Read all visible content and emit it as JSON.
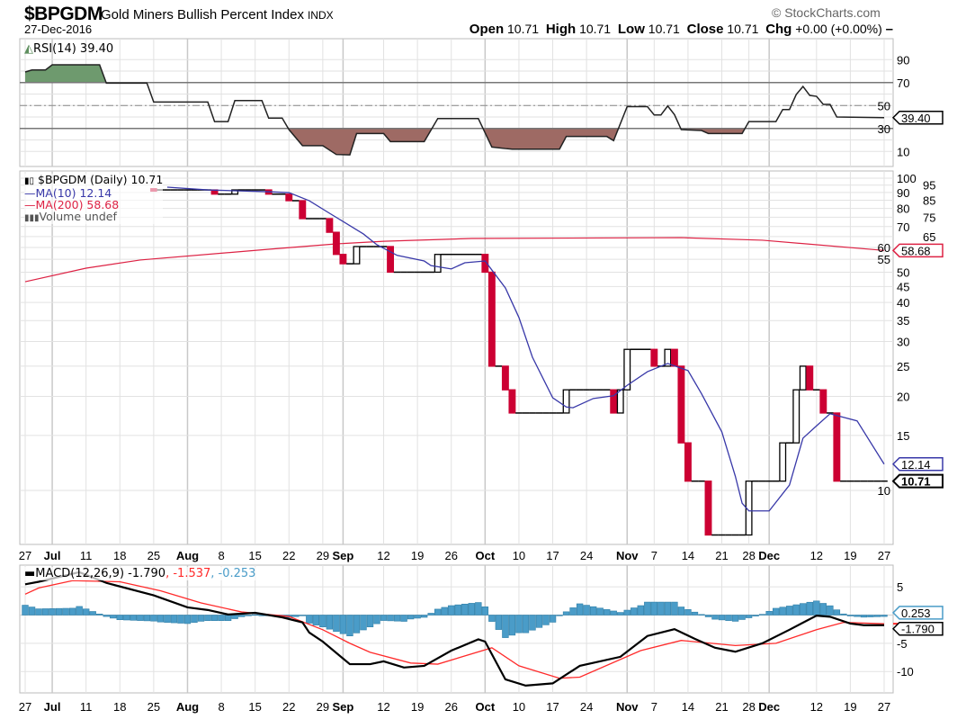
{
  "header": {
    "symbol": "$BPGDM",
    "name": "Gold Miners Bullish Percent Index",
    "exchange": "INDX",
    "date": "27-Dec-2016",
    "copyright": "© StockCharts.com",
    "open_label": "Open",
    "open": "10.71",
    "high_label": "High",
    "high": "10.71",
    "low_label": "Low",
    "low": "10.71",
    "close_label": "Close",
    "close": "10.71",
    "chg_label": "Chg",
    "chg": "+0.00 (+0.00%)",
    "chg_marker": "–"
  },
  "colors": {
    "up": "#000000",
    "down": "#cc0033",
    "ma10": "#3838a8",
    "ma200": "#dd2244",
    "rsi_line": "#222222",
    "rsi_overbought_fill": "#6e9a6e",
    "rsi_oversold_fill": "#9e6a64",
    "macd": "#000000",
    "signal": "#ff2a2a",
    "histogram": "#4a9cc8",
    "grid": "#e2e2e2"
  },
  "x_axis": {
    "ticks": [
      {
        "date": "2016-06-27",
        "label": "27"
      },
      {
        "date": "2016-07-01",
        "label": "Jul",
        "month": true
      },
      {
        "date": "2016-07-11",
        "label": "11"
      },
      {
        "date": "2016-07-18",
        "label": "18"
      },
      {
        "date": "2016-07-25",
        "label": "25"
      },
      {
        "date": "2016-08-01",
        "label": "Aug",
        "month": true
      },
      {
        "date": "2016-08-08",
        "label": "8"
      },
      {
        "date": "2016-08-15",
        "label": "15"
      },
      {
        "date": "2016-08-22",
        "label": "22"
      },
      {
        "date": "2016-08-29",
        "label": "29"
      },
      {
        "date": "2016-09-01",
        "label": "Sep",
        "month": true
      },
      {
        "date": "2016-09-12",
        "label": "12"
      },
      {
        "date": "2016-09-19",
        "label": "19"
      },
      {
        "date": "2016-09-26",
        "label": "26"
      },
      {
        "date": "2016-10-03",
        "label": "Oct",
        "month": true
      },
      {
        "date": "2016-10-10",
        "label": "10"
      },
      {
        "date": "2016-10-17",
        "label": "17"
      },
      {
        "date": "2016-10-24",
        "label": "24"
      },
      {
        "date": "2016-11-01",
        "label": "Nov",
        "month": true
      },
      {
        "date": "2016-11-07",
        "label": "7"
      },
      {
        "date": "2016-11-14",
        "label": "14"
      },
      {
        "date": "2016-11-21",
        "label": "21"
      },
      {
        "date": "2016-11-28",
        "label": "28"
      },
      {
        "date": "2016-12-01",
        "label": "Dec",
        "month": true
      },
      {
        "date": "2016-12-12",
        "label": "12"
      },
      {
        "date": "2016-12-19",
        "label": "19"
      },
      {
        "date": "2016-12-27",
        "label": "27"
      }
    ],
    "range": [
      "2016-06-27",
      "2016-12-27"
    ]
  },
  "chart_data": [
    {
      "type": "line",
      "panel": "rsi",
      "legend": "RSI(14) 39.40",
      "ylim": [
        0,
        100
      ],
      "yticks": [
        90,
        70,
        50,
        30,
        10
      ],
      "levels": {
        "overbought": 70,
        "mid": 50,
        "oversold": 30
      },
      "value_tag": "39.40",
      "points": [
        [
          "2016-06-27",
          79.2
        ],
        [
          "2016-06-28",
          81
        ],
        [
          "2016-06-30",
          81
        ],
        [
          "2016-07-01",
          85.5
        ],
        [
          "2016-07-13",
          85.5
        ],
        [
          "2016-07-14",
          69.5
        ],
        [
          "2016-07-22",
          69.5
        ],
        [
          "2016-07-25",
          53
        ],
        [
          "2016-08-04",
          53
        ],
        [
          "2016-08-05",
          36
        ],
        [
          "2016-08-09",
          36
        ],
        [
          "2016-08-10",
          54.3
        ],
        [
          "2016-08-16",
          54.3
        ],
        [
          "2016-08-17",
          39
        ],
        [
          "2016-08-19",
          39
        ],
        [
          "2016-08-22",
          29
        ],
        [
          "2016-08-24",
          15
        ],
        [
          "2016-08-29",
          15
        ],
        [
          "2016-08-31",
          7.3
        ],
        [
          "2016-09-02",
          7
        ],
        [
          "2016-09-06",
          25.6
        ],
        [
          "2016-09-12",
          25.6
        ],
        [
          "2016-09-13",
          18.5
        ],
        [
          "2016-09-20",
          18.5
        ],
        [
          "2016-09-22",
          38.6
        ],
        [
          "2016-09-30",
          38.6
        ],
        [
          "2016-10-04",
          13.8
        ],
        [
          "2016-10-06",
          12.5
        ],
        [
          "2016-10-07",
          12
        ],
        [
          "2016-10-18",
          12
        ],
        [
          "2016-10-19",
          23
        ],
        [
          "2016-10-27",
          23
        ],
        [
          "2016-10-28",
          19.4
        ],
        [
          "2016-11-01",
          49
        ],
        [
          "2016-11-04",
          49
        ],
        [
          "2016-11-07",
          41.8
        ],
        [
          "2016-11-08",
          41.8
        ],
        [
          "2016-11-09",
          49.6
        ],
        [
          "2016-11-10",
          42
        ],
        [
          "2016-11-11",
          29
        ],
        [
          "2016-11-16",
          28.2
        ],
        [
          "2016-11-17",
          25.6
        ],
        [
          "2016-11-25",
          25.6
        ],
        [
          "2016-11-28",
          36
        ],
        [
          "2016-12-02",
          36
        ],
        [
          "2016-12-05",
          46.5
        ],
        [
          "2016-12-06",
          46.5
        ],
        [
          "2016-12-07",
          59.6
        ],
        [
          "2016-12-08",
          66.6
        ],
        [
          "2016-12-09",
          58.8
        ],
        [
          "2016-12-12",
          58
        ],
        [
          "2016-12-13",
          51
        ],
        [
          "2016-12-14",
          51
        ],
        [
          "2016-12-15",
          40
        ],
        [
          "2016-12-27",
          39.4
        ]
      ]
    },
    {
      "type": "line",
      "panel": "price",
      "scale": "log",
      "legend": {
        "price": "$BPGDM (Daily) 10.71",
        "ma10": "MA(10) 12.14",
        "ma200": "MA(200) 58.68",
        "volume": "Volume undef"
      },
      "yticks": [
        100,
        95,
        90,
        85,
        80,
        75,
        70,
        65,
        60,
        55,
        50,
        45,
        40,
        35,
        30,
        25,
        20,
        15,
        10
      ],
      "tags": {
        "ma200": "58.68",
        "ma10": "12.14",
        "close": "10.71"
      },
      "close_changes": [
        [
          "2016-07-25",
          91.7
        ],
        [
          "2016-08-05",
          88.9
        ],
        [
          "2016-08-10",
          91.7
        ],
        [
          "2016-08-17",
          88.9
        ],
        [
          "2016-08-22",
          84.7
        ],
        [
          "2016-08-24",
          74.2
        ],
        [
          "2016-08-30",
          67.1
        ],
        [
          "2016-08-31",
          57
        ],
        [
          "2016-09-01",
          53.2
        ],
        [
          "2016-09-06",
          60.4
        ],
        [
          "2016-09-13",
          50
        ],
        [
          "2016-09-22",
          57
        ],
        [
          "2016-10-03",
          50
        ],
        [
          "2016-10-04",
          25
        ],
        [
          "2016-10-06",
          21
        ],
        [
          "2016-10-07",
          17.7
        ],
        [
          "2016-10-19",
          21
        ],
        [
          "2016-10-28",
          17.7
        ],
        [
          "2016-10-31",
          21
        ],
        [
          "2016-11-01",
          28.3
        ],
        [
          "2016-11-07",
          25
        ],
        [
          "2016-11-09",
          28.3
        ],
        [
          "2016-11-10",
          25
        ],
        [
          "2016-11-11",
          14.2
        ],
        [
          "2016-11-14",
          10.71
        ],
        [
          "2016-11-17",
          7.2
        ],
        [
          "2016-11-28",
          10.71
        ],
        [
          "2016-12-05",
          14.2
        ],
        [
          "2016-12-07",
          21
        ],
        [
          "2016-12-08",
          25
        ],
        [
          "2016-12-09",
          21
        ],
        [
          "2016-12-13",
          17.7
        ],
        [
          "2016-12-15",
          10.71
        ],
        [
          "2016-12-27",
          10.71
        ]
      ],
      "ma10": [
        [
          "2016-07-27",
          93.6
        ],
        [
          "2016-08-04",
          91.7
        ],
        [
          "2016-08-17",
          90.5
        ],
        [
          "2016-08-22",
          89.9
        ],
        [
          "2016-08-25",
          84.7
        ],
        [
          "2016-08-30",
          77.2
        ],
        [
          "2016-09-07",
          66.3
        ],
        [
          "2016-09-09",
          61.2
        ],
        [
          "2016-09-14",
          56.6
        ],
        [
          "2016-09-20",
          54.3
        ],
        [
          "2016-09-21",
          52.5
        ],
        [
          "2016-09-26",
          51.2
        ],
        [
          "2016-09-28",
          53.6
        ],
        [
          "2016-10-03",
          54.3
        ],
        [
          "2016-10-04",
          50.8
        ],
        [
          "2016-10-06",
          44.5
        ],
        [
          "2016-10-10",
          35.8
        ],
        [
          "2016-10-12",
          26.7
        ],
        [
          "2016-10-17",
          19.8
        ],
        [
          "2016-10-19",
          18.5
        ],
        [
          "2016-10-20",
          18.4
        ],
        [
          "2016-10-25",
          19.7
        ],
        [
          "2016-10-28",
          20.1
        ],
        [
          "2016-11-01",
          21.7
        ],
        [
          "2016-11-04",
          24
        ],
        [
          "2016-11-09",
          25.5
        ],
        [
          "2016-11-14",
          24.2
        ],
        [
          "2016-11-16",
          20.4
        ],
        [
          "2016-11-21",
          15.4
        ],
        [
          "2016-11-23",
          11.1
        ],
        [
          "2016-11-25",
          9.1
        ],
        [
          "2016-11-28",
          8.6
        ],
        [
          "2016-12-01",
          8.6
        ],
        [
          "2016-12-06",
          10.4
        ],
        [
          "2016-12-08",
          14.7
        ],
        [
          "2016-12-12",
          16.1
        ],
        [
          "2016-12-14",
          17.6
        ],
        [
          "2016-12-20",
          16.7
        ],
        [
          "2016-12-27",
          12.14
        ]
      ],
      "ma200": [
        [
          "2016-06-27",
          46.6
        ],
        [
          "2016-07-11",
          51.5
        ],
        [
          "2016-07-21",
          54.7
        ],
        [
          "2016-08-17",
          59.2
        ],
        [
          "2016-08-31",
          61.6
        ],
        [
          "2016-09-12",
          62.8
        ],
        [
          "2016-09-29",
          64.1
        ],
        [
          "2016-11-11",
          64.5
        ],
        [
          "2016-11-30",
          63.3
        ],
        [
          "2016-12-27",
          58.68
        ]
      ]
    },
    {
      "type": "line",
      "panel": "macd",
      "legend": {
        "label": "MACD(12,26,9)",
        "macd": "-1.790",
        "signal": ", -1.537",
        "histogram": ", -0.253"
      },
      "ylim": [
        -13.9,
        8.8
      ],
      "yticks": [
        5,
        -5,
        -10
      ],
      "tags": {
        "histogram": "0.253",
        "macd": "-1.790"
      },
      "macd": [
        [
          "2016-06-27",
          5.45
        ],
        [
          "2016-06-29",
          5.9
        ],
        [
          "2016-07-08",
          7.6
        ],
        [
          "2016-07-14",
          5.7
        ],
        [
          "2016-07-25",
          3.5
        ],
        [
          "2016-08-01",
          1.36
        ],
        [
          "2016-08-04",
          0.9
        ],
        [
          "2016-08-09",
          0.1
        ],
        [
          "2016-08-15",
          0.4
        ],
        [
          "2016-08-19",
          -0.4
        ],
        [
          "2016-08-24",
          -1.3
        ],
        [
          "2016-08-25",
          -3.1
        ],
        [
          "2016-08-29",
          -4.7
        ],
        [
          "2016-09-02",
          -8.7
        ],
        [
          "2016-09-08",
          -8.7
        ],
        [
          "2016-09-12",
          -8.2
        ],
        [
          "2016-09-15",
          -9.3
        ],
        [
          "2016-09-20",
          -9.0
        ],
        [
          "2016-09-26",
          -6.3
        ],
        [
          "2016-09-30",
          -4.3
        ],
        [
          "2016-10-03",
          -4.7
        ],
        [
          "2016-10-06",
          -11.4
        ],
        [
          "2016-10-11",
          -12.5
        ],
        [
          "2016-10-17",
          -12.1
        ],
        [
          "2016-10-21",
          -9.0
        ],
        [
          "2016-10-31",
          -7.4
        ],
        [
          "2016-11-04",
          -3.7
        ],
        [
          "2016-11-10",
          -2.5
        ],
        [
          "2016-11-15",
          -4.2
        ],
        [
          "2016-11-18",
          -5.8
        ],
        [
          "2016-11-23",
          -6.5
        ],
        [
          "2016-11-30",
          -5.0
        ],
        [
          "2016-12-06",
          -2.6
        ],
        [
          "2016-12-12",
          -0.1
        ],
        [
          "2016-12-14",
          -0.3
        ],
        [
          "2016-12-19",
          -1.5
        ],
        [
          "2016-12-21",
          -1.79
        ],
        [
          "2016-12-27",
          -1.79
        ]
      ],
      "signal": [
        [
          "2016-06-27",
          3.7
        ],
        [
          "2016-06-29",
          4.8
        ],
        [
          "2016-07-07",
          6.1
        ],
        [
          "2016-07-18",
          5.9
        ],
        [
          "2016-07-26",
          4.3
        ],
        [
          "2016-08-03",
          2.15
        ],
        [
          "2016-08-11",
          0.55
        ],
        [
          "2016-08-22",
          -0.25
        ],
        [
          "2016-08-29",
          -2.6
        ],
        [
          "2016-09-02",
          -5.0
        ],
        [
          "2016-09-08",
          -6.6
        ],
        [
          "2016-09-16",
          -8.5
        ],
        [
          "2016-09-22",
          -8.7
        ],
        [
          "2016-10-04",
          -5.8
        ],
        [
          "2016-10-10",
          -9.0
        ],
        [
          "2016-10-18",
          -11.2
        ],
        [
          "2016-10-21",
          -11.0
        ],
        [
          "2016-11-03",
          -6.3
        ],
        [
          "2016-11-11",
          -4.5
        ],
        [
          "2016-11-23",
          -5.4
        ],
        [
          "2016-12-02",
          -5.0
        ],
        [
          "2016-12-12",
          -2.6
        ],
        [
          "2016-12-16",
          -1.3
        ],
        [
          "2016-12-27",
          -1.537
        ]
      ]
    }
  ]
}
